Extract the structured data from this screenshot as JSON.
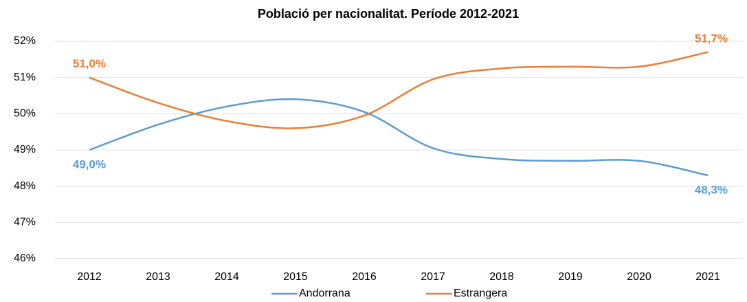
{
  "chart_data": {
    "type": "line",
    "title": "Població per nacionalitat. Període 2012-2021",
    "categories": [
      "2012",
      "2013",
      "2014",
      "2015",
      "2016",
      "2017",
      "2018",
      "2019",
      "2020",
      "2021"
    ],
    "series": [
      {
        "name": "Andorrana",
        "color": "#5b9bd5",
        "values": [
          49.0,
          49.7,
          50.2,
          50.4,
          50.05,
          49.05,
          48.75,
          48.7,
          48.7,
          48.3
        ],
        "value_labels": [
          "49,0%",
          null,
          null,
          null,
          null,
          null,
          null,
          null,
          null,
          "48,3%"
        ]
      },
      {
        "name": "Estrangera",
        "color": "#ed7d31",
        "values": [
          51.0,
          50.3,
          49.8,
          49.6,
          49.95,
          50.95,
          51.25,
          51.3,
          51.3,
          51.7
        ],
        "value_labels": [
          "51,0%",
          null,
          null,
          null,
          null,
          null,
          null,
          null,
          null,
          "51,7%"
        ]
      }
    ],
    "ylim": [
      46,
      52
    ],
    "yticks": [
      {
        "value": 46,
        "label": "46%"
      },
      {
        "value": 47,
        "label": "47%"
      },
      {
        "value": 48,
        "label": "48%"
      },
      {
        "value": 49,
        "label": "49%"
      },
      {
        "value": 50,
        "label": "50%"
      },
      {
        "value": 51,
        "label": "51%"
      },
      {
        "value": 52,
        "label": "52%"
      }
    ],
    "grid": true,
    "legend": "bottom",
    "smooth": true
  }
}
